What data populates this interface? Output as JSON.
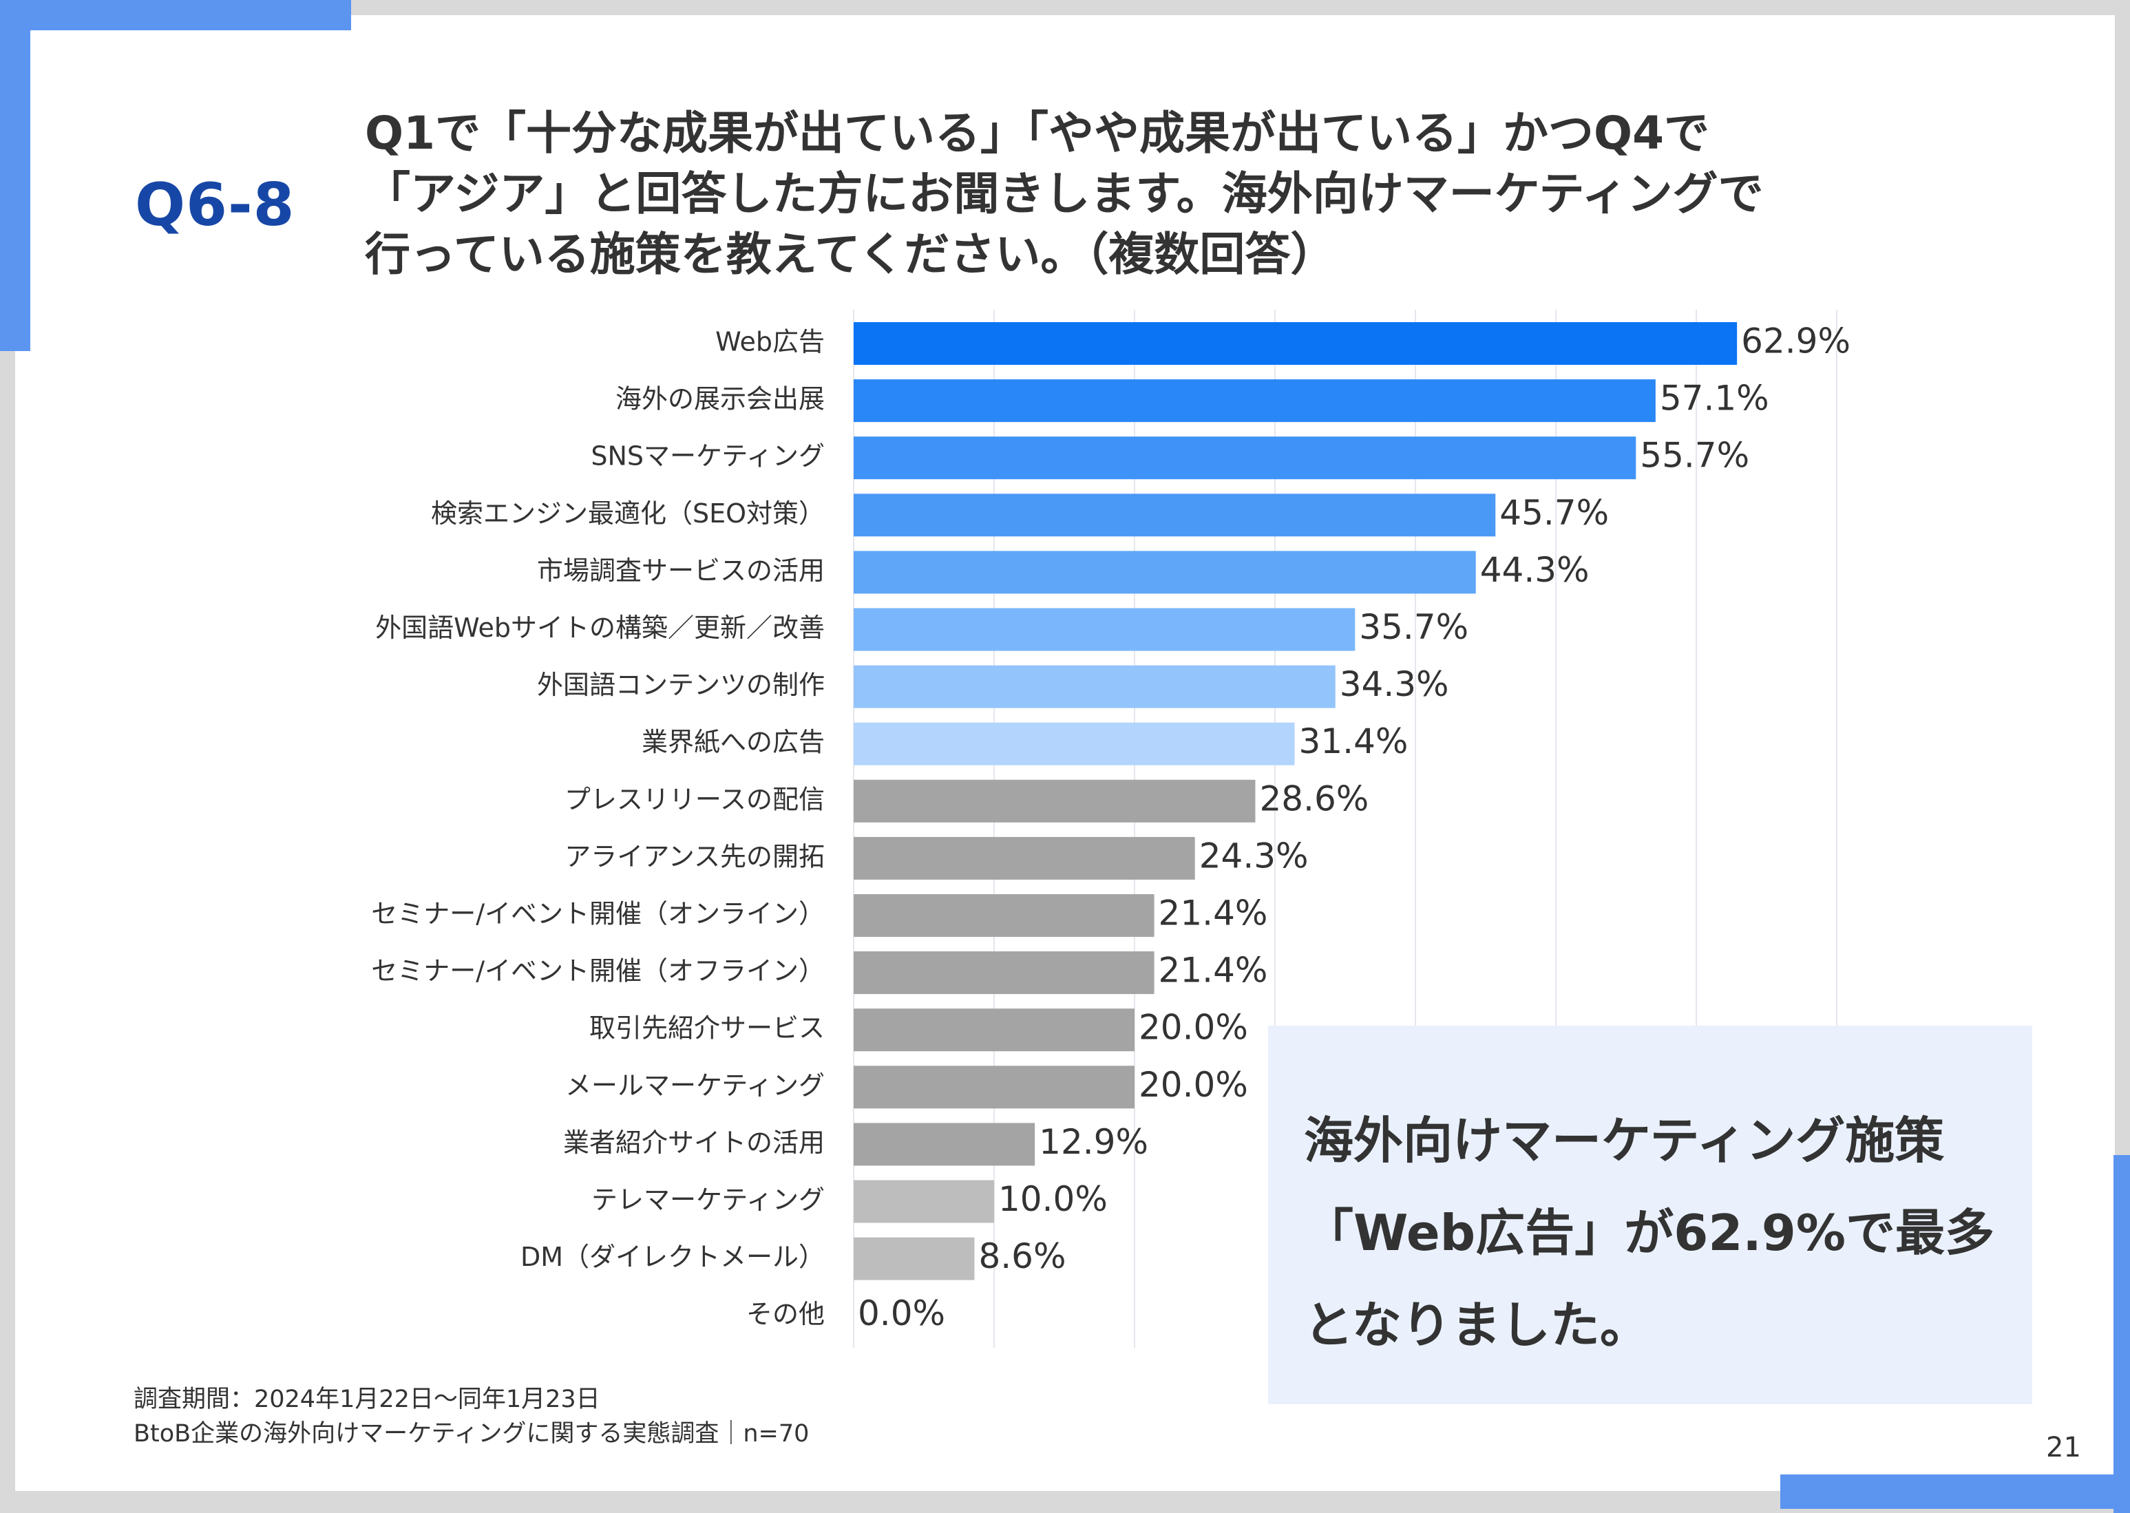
{
  "question_id": "Q6-8",
  "question_lines": [
    "Q1で「十分な成果が出ている」「やや成果が出ている」かつQ4で",
    "「アジア」と回答した方にお聞きします。海外向けマーケティングで",
    "行っている施策を教えてください。（複数回答）"
  ],
  "callout_lines": [
    "海外向けマーケティング施策",
    "「Web広告」が62.9%で最多",
    "となりました。"
  ],
  "footnote": {
    "period": "調査期間：2024年1月22日～同年1月23日",
    "survey": "BtoB企業の海外向けマーケティングに関する実態調査｜n=70"
  },
  "page_number": "21",
  "colors": {
    "accent": "#5b95f0",
    "title": "#1747a6",
    "callout_bg": "#eaf1fd"
  },
  "chart_data": {
    "type": "bar",
    "orientation": "horizontal",
    "categories": [
      "Web広告",
      "海外の展示会出展",
      "SNSマーケティング",
      "検索エンジン最適化（SEO対策）",
      "市場調査サービスの活用",
      "外国語Webサイトの構築／更新／改善",
      "外国語コンテンツの制作",
      "業界紙への広告",
      "プレスリリースの配信",
      "アライアンス先の開拓",
      "セミナー/イベント開催（オンライン）",
      "セミナー/イベント開催（オフライン）",
      "取引先紹介サービス",
      "メールマーケティング",
      "業者紹介サイトの活用",
      "テレマーケティング",
      "DM（ダイレクトメール）",
      "その他"
    ],
    "values": [
      62.9,
      57.1,
      55.7,
      45.7,
      44.3,
      35.7,
      34.3,
      31.4,
      28.6,
      24.3,
      21.4,
      21.4,
      20.0,
      20.0,
      12.9,
      10.0,
      8.6,
      0.0
    ],
    "value_labels": [
      "62.9%",
      "57.1%",
      "55.7%",
      "45.7%",
      "44.3%",
      "35.7%",
      "34.3%",
      "31.4%",
      "28.6%",
      "24.3%",
      "21.4%",
      "21.4%",
      "20.0%",
      "20.0%",
      "12.9%",
      "10.0%",
      "8.6%",
      "0.0%"
    ],
    "bar_colors": [
      "#0a74f5",
      "#2a87f7",
      "#3f93f8",
      "#4b99f7",
      "#5fa6f9",
      "#7ab6fb",
      "#93c5fc",
      "#b3d5fd",
      "#a4a4a4",
      "#a4a4a4",
      "#a4a4a4",
      "#a4a4a4",
      "#a4a4a4",
      "#a4a4a4",
      "#a4a4a4",
      "#bdbdbd",
      "#bdbdbd",
      "#bdbdbd"
    ],
    "xlim": [
      0,
      70
    ],
    "grid": true,
    "unit": "%"
  }
}
